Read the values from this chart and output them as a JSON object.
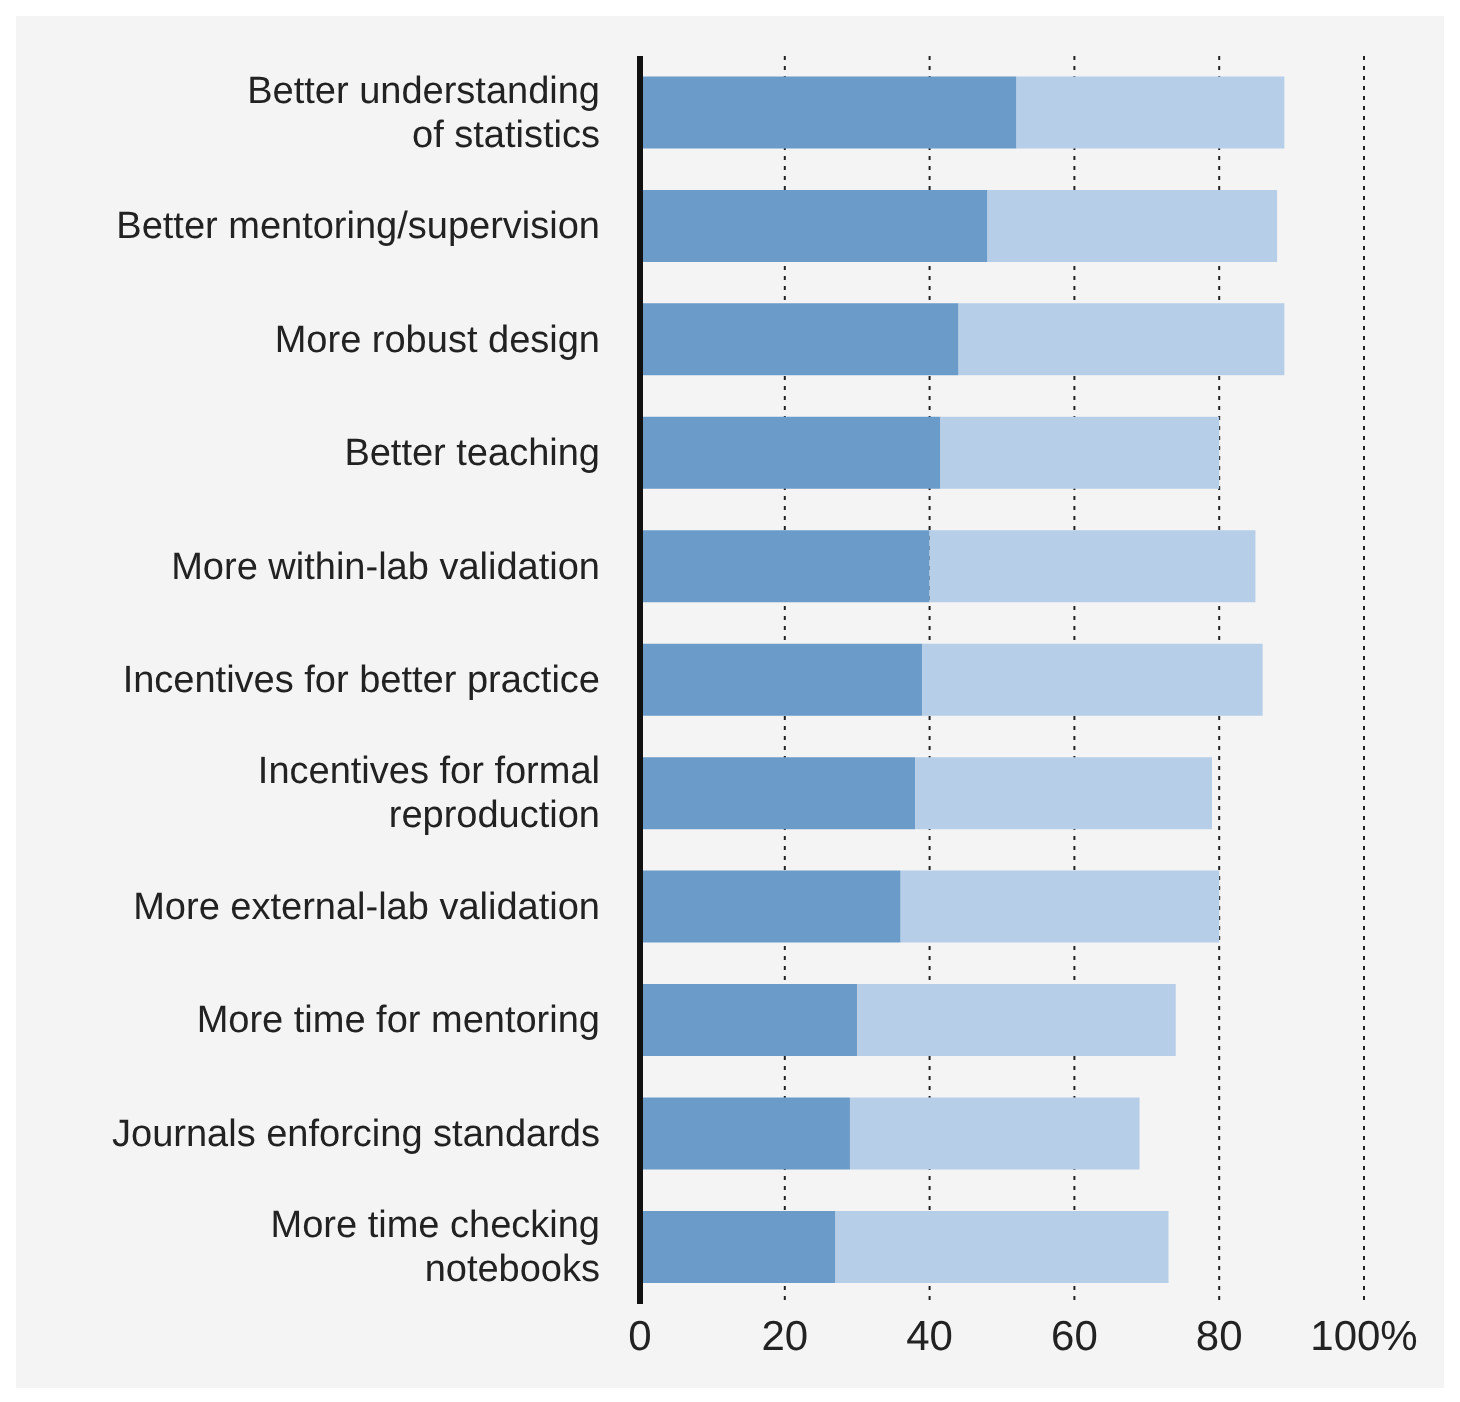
{
  "chart_data": {
    "type": "bar",
    "orientation": "horizontal",
    "stacked": true,
    "categories": [
      "Better understanding\nof statistics",
      "Better mentoring/supervision",
      "More robust design",
      "Better teaching",
      "More within-lab validation",
      "Incentives for better practice",
      "Incentives for formal\nreproduction",
      "More external-lab validation",
      "More time for mentoring",
      "Journals enforcing standards",
      "More time checking\nnotebooks"
    ],
    "series": [
      {
        "color": "#6b9bc9",
        "values": [
          52,
          48,
          44,
          41.5,
          40,
          39,
          38,
          36,
          30,
          29,
          27
        ]
      },
      {
        "color": "#b6cee7",
        "values": [
          37,
          40,
          45,
          38.5,
          45,
          47,
          41,
          44,
          44,
          40,
          46
        ]
      }
    ],
    "xlim": [
      0,
      100
    ],
    "xticks": [
      0,
      20,
      40,
      60,
      80,
      {
        "value": 100,
        "label": "100%"
      }
    ],
    "grid": "x",
    "legend": false
  }
}
